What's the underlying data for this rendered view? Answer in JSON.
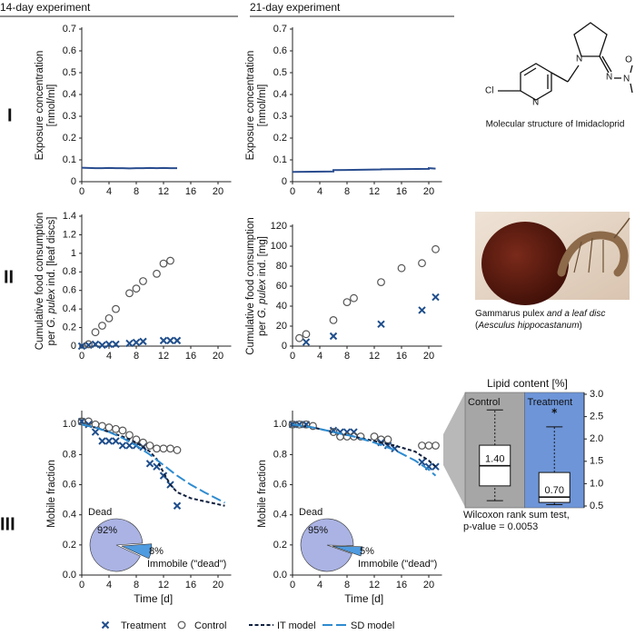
{
  "column_titles": [
    "14-day experiment",
    "21-day experiment"
  ],
  "row_labels": [
    "I",
    "II",
    "III"
  ],
  "molecule": {
    "atoms": [
      "Cl",
      "N",
      "N",
      "N",
      "N",
      "O"
    ],
    "caption": "Molecular structure of Imidacloprid"
  },
  "photo_caption": [
    [
      "Gammarus pulex",
      " and a leaf disc"
    ],
    [
      "(",
      "Aesculus hippocastanum",
      ")"
    ]
  ],
  "chart_data": [
    {
      "type": "line",
      "ylabel": [
        [
          "Exposure concentration"
        ],
        [
          "[nmol/ml]"
        ]
      ],
      "x": [
        0,
        1,
        2,
        3,
        4,
        5,
        6,
        7,
        8,
        9,
        10,
        11,
        12,
        13,
        14
      ],
      "values": [
        0.064,
        0.063,
        0.062,
        0.062,
        0.063,
        0.062,
        0.062,
        0.061,
        0.062,
        0.062,
        0.063,
        0.062,
        0.063,
        0.062,
        0.062
      ],
      "color": "#2a4d8f",
      "xlim": [
        0,
        21
      ],
      "xticks": [
        0,
        4,
        8,
        12,
        16,
        20
      ],
      "ylim": [
        0,
        0.7
      ],
      "yticks": [
        0,
        0.1,
        0.2,
        0.3,
        0.4,
        0.5,
        0.6,
        0.7
      ]
    },
    {
      "type": "line",
      "ylabel": [
        [
          "Exposure concentration"
        ],
        [
          "[nmol/ml]"
        ]
      ],
      "x": [
        0,
        6,
        6,
        13,
        13,
        20,
        20,
        21
      ],
      "values": [
        0.045,
        0.047,
        0.053,
        0.056,
        0.057,
        0.059,
        0.062,
        0.06
      ],
      "color": "#2a4d8f",
      "xlim": [
        0,
        21
      ],
      "xticks": [
        0,
        4,
        8,
        12,
        16,
        20
      ],
      "ylim": [
        0,
        0.7
      ],
      "yticks": [
        0,
        0.1,
        0.2,
        0.3,
        0.4,
        0.5,
        0.6,
        0.7
      ]
    },
    {
      "type": "scatter",
      "ylabel": [
        [
          "Cumulative food consumption"
        ],
        [
          "per ",
          "G. pulex",
          " ind. [leaf discs]"
        ]
      ],
      "xlim": [
        0,
        21
      ],
      "xticks": [
        0,
        4,
        8,
        12,
        16,
        20
      ],
      "ylim": [
        0,
        1.4
      ],
      "yticks": [
        0,
        0.2,
        0.4,
        0.6,
        0.8,
        1,
        1.2,
        1.4
      ],
      "series": [
        {
          "name": "Treatment",
          "marker": "x",
          "color": "#1f4e8c",
          "x": [
            0,
            1,
            2,
            3,
            4,
            5,
            7,
            8,
            9,
            12,
            13,
            14
          ],
          "values": [
            0,
            0.01,
            0.02,
            0.01,
            0.02,
            0.02,
            0.03,
            0.04,
            0.05,
            0.06,
            0.06,
            0.06
          ]
        },
        {
          "name": "Control",
          "marker": "circle",
          "color": "#555555",
          "x": [
            1,
            2,
            3,
            4,
            5,
            7,
            8,
            9,
            11,
            12,
            13
          ],
          "values": [
            0.02,
            0.15,
            0.22,
            0.3,
            0.4,
            0.57,
            0.62,
            0.7,
            0.78,
            0.89,
            0.92
          ]
        }
      ]
    },
    {
      "type": "scatter",
      "ylabel": [
        [
          "Cumulative food consumption"
        ],
        [
          "per ",
          "G. pulex",
          " ind. [mg]"
        ]
      ],
      "xlim": [
        0,
        21
      ],
      "xticks": [
        0,
        4,
        8,
        12,
        16,
        20
      ],
      "ylim": [
        0,
        120
      ],
      "yticks": [
        0,
        20,
        40,
        60,
        80,
        100,
        120
      ],
      "series": [
        {
          "name": "Treatment",
          "marker": "x",
          "color": "#1f4e8c",
          "x": [
            2,
            6,
            13,
            19,
            21
          ],
          "values": [
            4,
            10,
            22,
            36,
            49
          ]
        },
        {
          "name": "Control",
          "marker": "circle",
          "color": "#555555",
          "x": [
            1,
            2,
            6,
            8,
            9,
            13,
            16,
            19,
            21
          ],
          "values": [
            8,
            12,
            26,
            44,
            48,
            64,
            78,
            83,
            97
          ]
        }
      ]
    },
    {
      "type": "line",
      "ylabel": [
        [
          "Mobile fraction"
        ]
      ],
      "xlabel": "Time [d]",
      "xlim": [
        0,
        21
      ],
      "xticks": [
        0,
        4,
        8,
        12,
        16,
        20
      ],
      "ylim": [
        0,
        1.08
      ],
      "yticks": [
        {
          "value": 0,
          "label": "0.0"
        },
        0.2,
        0.4,
        0.6,
        0.8,
        {
          "value": 1,
          "label": "1.0"
        }
      ],
      "series": [
        {
          "name": "Treatment",
          "marker": "x",
          "color": "#1f4e8c",
          "x": [
            0,
            1,
            2,
            3,
            4,
            5,
            6,
            7,
            8,
            9,
            10,
            11,
            12,
            13,
            14
          ],
          "values": [
            1.02,
            1.0,
            0.95,
            0.89,
            0.89,
            0.89,
            0.86,
            0.86,
            0.86,
            0.85,
            0.74,
            0.72,
            0.66,
            0.6,
            0.46
          ]
        },
        {
          "name": "Control",
          "marker": "circle",
          "color": "#555555",
          "x": [
            0,
            1,
            2,
            3,
            4,
            5,
            6,
            7,
            8,
            9,
            10,
            11,
            12,
            13,
            14
          ],
          "values": [
            1.02,
            1.02,
            1.0,
            0.99,
            0.98,
            0.97,
            0.96,
            0.93,
            0.9,
            0.88,
            0.86,
            0.84,
            0.84,
            0.84,
            0.83
          ]
        },
        {
          "name": "IT model",
          "line": "dashed",
          "color": "#10203f",
          "x": [
            0,
            2,
            4,
            6,
            8,
            10,
            11,
            12,
            13,
            14,
            16,
            18,
            21
          ],
          "values": [
            1.0,
            0.98,
            0.95,
            0.92,
            0.88,
            0.82,
            0.77,
            0.68,
            0.6,
            0.55,
            0.51,
            0.49,
            0.46
          ]
        },
        {
          "name": "SD model",
          "line": "longdash",
          "color": "#2e8bd0",
          "x": [
            0,
            2,
            4,
            6,
            8,
            10,
            12,
            14,
            16,
            18,
            21
          ],
          "values": [
            1.0,
            0.98,
            0.95,
            0.91,
            0.86,
            0.8,
            0.73,
            0.66,
            0.6,
            0.55,
            0.48
          ]
        }
      ],
      "pie": {
        "type": "pie",
        "categories": [
          "Dead",
          "Immobile (\"dead\")"
        ],
        "values": [
          92,
          8
        ],
        "value_labels": [
          "92%",
          "8%"
        ],
        "colors": [
          "#aab3e3",
          "#4f9be0"
        ]
      }
    },
    {
      "type": "line",
      "ylabel": [
        [
          "Mobile fraction"
        ]
      ],
      "xlabel": "Time [d]",
      "xlim": [
        0,
        21
      ],
      "xticks": [
        0,
        4,
        8,
        12,
        16,
        20
      ],
      "ylim": [
        0,
        1.08
      ],
      "yticks": [
        {
          "value": 0,
          "label": "0.0"
        },
        0.2,
        0.4,
        0.6,
        0.8,
        {
          "value": 1,
          "label": "1.0"
        }
      ],
      "series": [
        {
          "name": "Treatment",
          "marker": "x",
          "color": "#1f4e8c",
          "x": [
            0,
            1,
            2,
            6,
            7,
            8,
            9,
            13,
            14,
            15,
            19,
            20,
            21
          ],
          "values": [
            1.0,
            1.0,
            1.0,
            0.96,
            0.95,
            0.95,
            0.95,
            0.88,
            0.86,
            0.84,
            0.75,
            0.72,
            0.72
          ]
        },
        {
          "name": "Control",
          "marker": "circle",
          "color": "#555555",
          "x": [
            0,
            1,
            2,
            3,
            6,
            7,
            8,
            9,
            10,
            12,
            13,
            14,
            19,
            20,
            21
          ],
          "values": [
            1.0,
            1.0,
            1.0,
            0.99,
            0.95,
            0.92,
            0.92,
            0.92,
            0.92,
            0.92,
            0.9,
            0.9,
            0.86,
            0.86,
            0.86
          ]
        },
        {
          "name": "IT model",
          "line": "dashed",
          "color": "#10203f",
          "x": [
            0,
            3,
            6,
            9,
            12,
            15,
            18,
            20,
            21
          ],
          "values": [
            1.0,
            0.98,
            0.95,
            0.92,
            0.89,
            0.86,
            0.82,
            0.76,
            0.72
          ]
        },
        {
          "name": "SD model",
          "line": "longdash",
          "color": "#2e8bd0",
          "x": [
            0,
            3,
            6,
            9,
            12,
            15,
            18,
            20,
            21
          ],
          "values": [
            1.0,
            0.98,
            0.95,
            0.92,
            0.88,
            0.83,
            0.76,
            0.7,
            0.66
          ]
        }
      ],
      "pie": {
        "type": "pie",
        "categories": [
          "Dead",
          "Immobile (\"dead\")"
        ],
        "values": [
          95,
          5
        ],
        "value_labels": [
          "95%",
          "5%"
        ],
        "colors": [
          "#aab3e3",
          "#4f9be0"
        ]
      }
    },
    {
      "type": "box",
      "title": "Lipid content [%]",
      "categories": [
        "Control",
        "Treatment"
      ],
      "ylim": [
        0.5,
        3.0
      ],
      "yticks": [
        0.5,
        {
          "value": 1,
          "label": "1.0"
        },
        1.5,
        {
          "value": 2,
          "label": "2.0"
        },
        2.5,
        {
          "value": 3,
          "label": "3.0"
        }
      ],
      "boxes": [
        {
          "whisker_low": 0.62,
          "q1": 0.95,
          "median": 1.4,
          "q3": 1.86,
          "whisker_high": 2.65,
          "outliers": [],
          "color": "#a6a6a6"
        },
        {
          "whisker_low": 0.53,
          "q1": 0.58,
          "median": 0.7,
          "q3": 1.25,
          "whisker_high": 2.27,
          "outliers": [
            2.63
          ],
          "color": "#6d95d8"
        }
      ],
      "median_labels": [
        "1.40",
        "0.70"
      ],
      "note": [
        "Wilcoxon rank sum test,",
        "p-value = 0.0053"
      ]
    }
  ]
}
